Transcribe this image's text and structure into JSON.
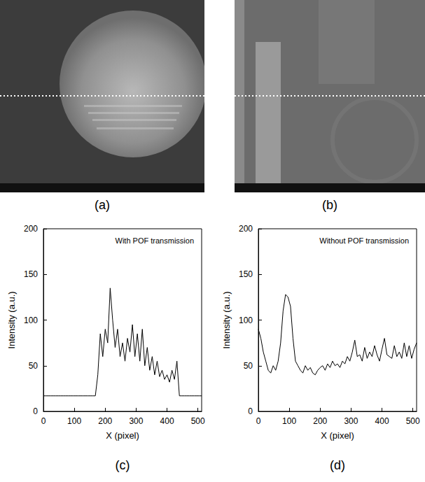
{
  "images": [
    {
      "label": "(a)"
    },
    {
      "label": "(b)"
    }
  ],
  "chart_data": [
    {
      "type": "line",
      "label": "(c)",
      "annotation": "With POF transmission",
      "x_label": "X (pixel)",
      "y_label": "Intensity (a.u.)",
      "color": "#000000",
      "grid": false,
      "xlim": [
        0,
        512
      ],
      "xticks": [
        0,
        100,
        200,
        300,
        400,
        500
      ],
      "ylim": [
        0,
        200
      ],
      "yticks": [
        0,
        50,
        100,
        150,
        200
      ],
      "x": [
        0,
        8,
        16,
        24,
        32,
        40,
        48,
        56,
        64,
        72,
        80,
        88,
        96,
        104,
        112,
        120,
        128,
        136,
        144,
        152,
        160,
        168,
        176,
        184,
        192,
        200,
        208,
        216,
        224,
        232,
        240,
        248,
        256,
        264,
        272,
        280,
        288,
        296,
        304,
        312,
        320,
        328,
        336,
        344,
        352,
        360,
        368,
        376,
        384,
        392,
        400,
        408,
        416,
        424,
        432,
        440,
        448,
        456,
        464,
        472,
        480,
        488,
        496,
        504,
        512
      ],
      "values": [
        17,
        17,
        17,
        17,
        17,
        17,
        17,
        17,
        17,
        17,
        17,
        17,
        17,
        17,
        17,
        17,
        17,
        17,
        17,
        17,
        17,
        17,
        40,
        85,
        60,
        90,
        75,
        135,
        100,
        70,
        90,
        60,
        75,
        55,
        80,
        65,
        95,
        60,
        85,
        55,
        90,
        50,
        70,
        45,
        60,
        40,
        55,
        38,
        45,
        35,
        40,
        32,
        45,
        35,
        55,
        17,
        17,
        17,
        17,
        17,
        17,
        17,
        17,
        17,
        17
      ]
    },
    {
      "type": "line",
      "label": "(d)",
      "annotation": "Without POF transmission",
      "x_label": "X (pixel)",
      "y_label": "Intensity (a.u.)",
      "color": "#000000",
      "grid": false,
      "xlim": [
        0,
        512
      ],
      "xticks": [
        0,
        100,
        200,
        300,
        400,
        500
      ],
      "ylim": [
        0,
        200
      ],
      "yticks": [
        0,
        50,
        100,
        150,
        200
      ],
      "x": [
        0,
        8,
        16,
        24,
        32,
        40,
        48,
        56,
        64,
        72,
        80,
        88,
        96,
        104,
        112,
        120,
        128,
        136,
        144,
        152,
        160,
        168,
        176,
        184,
        192,
        200,
        208,
        216,
        224,
        232,
        240,
        248,
        256,
        264,
        272,
        280,
        288,
        296,
        304,
        312,
        320,
        328,
        336,
        344,
        352,
        360,
        368,
        376,
        384,
        392,
        400,
        408,
        416,
        424,
        432,
        440,
        448,
        456,
        464,
        472,
        480,
        488,
        496,
        504,
        512
      ],
      "values": [
        90,
        80,
        65,
        55,
        45,
        42,
        50,
        45,
        55,
        75,
        110,
        128,
        125,
        115,
        80,
        55,
        50,
        45,
        42,
        50,
        45,
        48,
        42,
        40,
        45,
        48,
        50,
        45,
        52,
        48,
        55,
        50,
        52,
        48,
        55,
        52,
        60,
        55,
        65,
        78,
        60,
        62,
        55,
        70,
        58,
        65,
        60,
        72,
        62,
        55,
        68,
        80,
        62,
        60,
        58,
        72,
        60,
        65,
        58,
        75,
        60,
        72,
        58,
        68,
        75
      ]
    }
  ]
}
